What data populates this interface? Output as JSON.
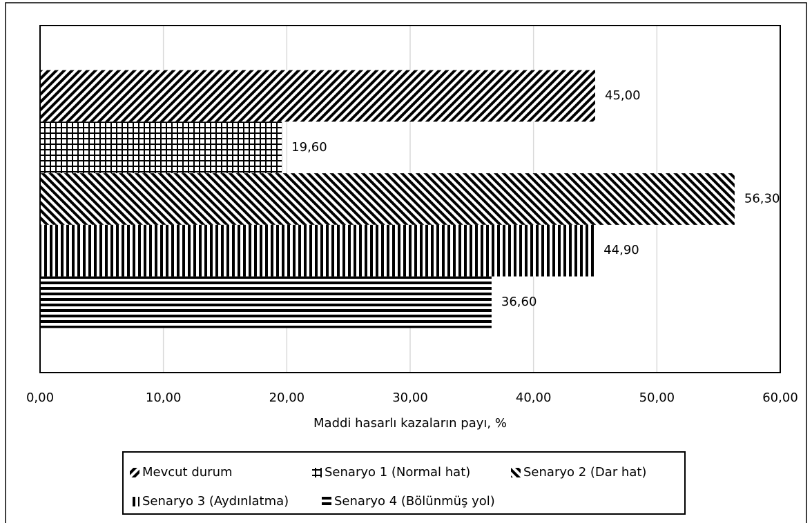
{
  "chart_data": {
    "type": "bar",
    "orientation": "horizontal",
    "xlabel": "Maddi hasarlı kazaların payı, %",
    "categories": [
      null
    ],
    "series": [
      {
        "name": "Mevcut durum",
        "color": "#5b9bd5",
        "pattern": "diagonal-down",
        "values": [
          45.0
        ],
        "value_labels": [
          "45,00"
        ]
      },
      {
        "name": "Senaryo 1 (Normal hat)",
        "color": "#ff0000",
        "pattern": "grid",
        "values": [
          19.6
        ],
        "value_labels": [
          "19,60"
        ]
      },
      {
        "name": "Senaryo 2 (Dar hat)",
        "color": "#7030a0",
        "pattern": "diagonal-up",
        "values": [
          56.3
        ],
        "value_labels": [
          "56,30"
        ]
      },
      {
        "name": "Senaryo 3 (Aydınlatma)",
        "color": "#c55a11",
        "pattern": "vertical",
        "values": [
          44.9
        ],
        "value_labels": [
          "44,90"
        ]
      },
      {
        "name": "Senaryo 4 (Bölünmüş yol)",
        "color": "#00b050",
        "pattern": "horizontal",
        "values": [
          36.6
        ],
        "value_labels": [
          "36,60"
        ]
      }
    ],
    "xlim": [
      0,
      60
    ],
    "xticks": [
      {
        "value": 0,
        "label": "0,00"
      },
      {
        "value": 10,
        "label": "10,00"
      },
      {
        "value": 20,
        "label": "20,00"
      },
      {
        "value": 30,
        "label": "30,00"
      },
      {
        "value": 40,
        "label": "40,00"
      },
      {
        "value": 50,
        "label": "50,00"
      },
      {
        "value": 60,
        "label": "60,00"
      }
    ],
    "grid": true,
    "legend": "bottom"
  }
}
